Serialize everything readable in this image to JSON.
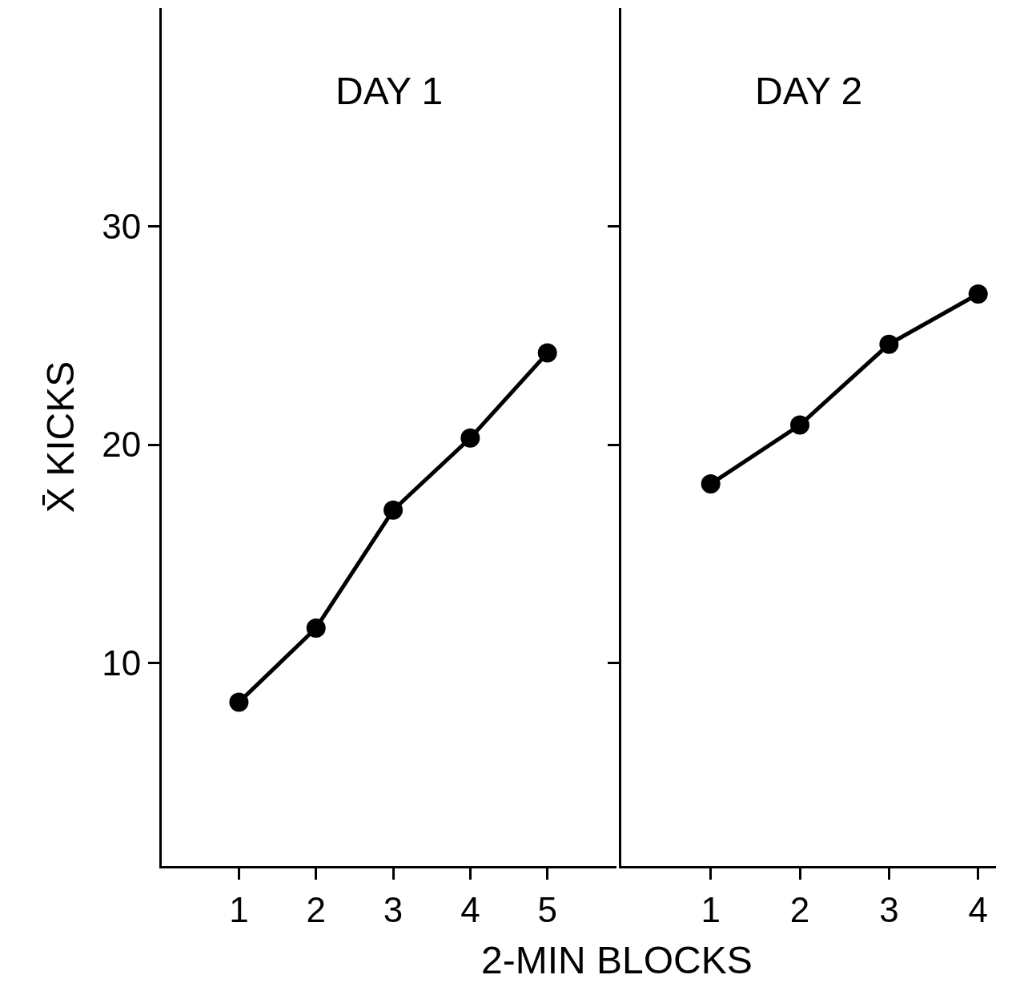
{
  "chart_data": [
    {
      "type": "line",
      "title": "DAY 1",
      "ylabel": "X̄ KICKS",
      "xlabel": "2-MIN BLOCKS",
      "x": [
        1,
        2,
        3,
        4,
        5
      ],
      "series": [
        {
          "color": "#000000",
          "values": [
            8.2,
            11.6,
            17.0,
            20.3,
            24.2
          ]
        }
      ],
      "xlim": [
        0,
        5.9
      ],
      "xticks": [
        1,
        2,
        3,
        4,
        5
      ],
      "ylim": [
        0.7,
        40
      ],
      "yticks": [
        10,
        20,
        30
      ],
      "marker": "circle",
      "line_style": "solid"
    },
    {
      "type": "line",
      "title": "DAY 2",
      "x": [
        1,
        2,
        3,
        4
      ],
      "series": [
        {
          "color": "#000000",
          "values": [
            18.2,
            20.9,
            24.6,
            26.9
          ]
        }
      ],
      "xlim": [
        0,
        4.2
      ],
      "xticks": [
        1,
        2,
        3,
        4
      ],
      "ylim": [
        0.7,
        40
      ],
      "yticks": [
        10,
        20,
        30
      ],
      "tick_labels": "x",
      "marker": "circle",
      "line_style": "solid"
    }
  ]
}
